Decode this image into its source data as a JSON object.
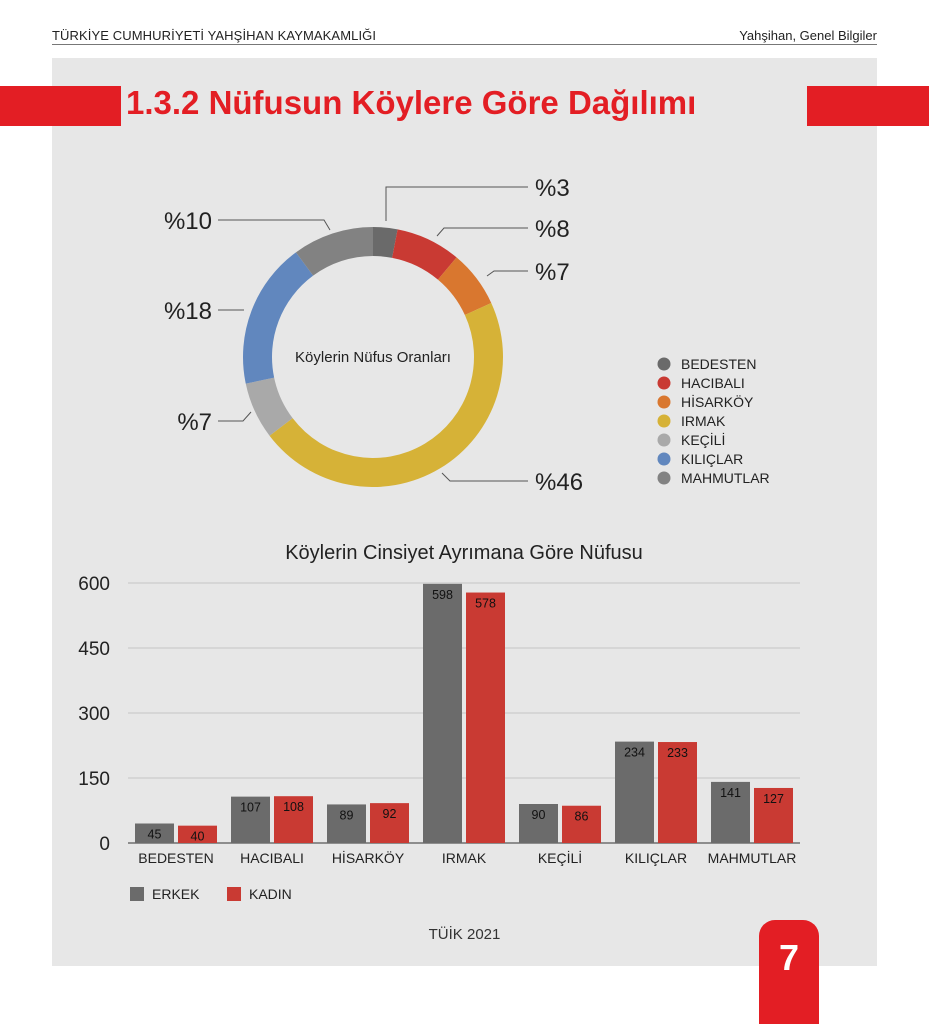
{
  "header": {
    "left": "TÜRKİYE CUMHURİYETİ YAHŞİHAN KAYMAKAMLIĞI",
    "right": "Yahşihan, Genel Bilgiler"
  },
  "section_title": "1.3.2 Nüfusun Köylere Göre Dağılımı",
  "source": "TÜİK 2021",
  "page_number": "7",
  "colors": {
    "accent": "#e31e24",
    "panel": "#e7e7e7",
    "erkek": "#6b6b6b",
    "kadin": "#c93a33"
  },
  "chart_data": [
    {
      "type": "pie",
      "title": "Köylerin Nüfus Oranları",
      "legend_position": "right",
      "slices": [
        {
          "name": "BEDESTEN",
          "value": 3,
          "label": "%3",
          "color": "#6a6a6a"
        },
        {
          "name": "HACIBALI",
          "value": 8,
          "label": "%8",
          "color": "#c93a33"
        },
        {
          "name": "HİSARKÖY",
          "value": 7,
          "label": "%7",
          "color": "#d9772f"
        },
        {
          "name": "IRMAK",
          "value": 46,
          "label": "%46",
          "color": "#d6b237"
        },
        {
          "name": "KEÇİLİ",
          "value": 7,
          "label": "%7",
          "color": "#a9a9a9"
        },
        {
          "name": "KILIÇLAR",
          "value": 18,
          "label": "%18",
          "color": "#6187be"
        },
        {
          "name": "MAHMUTLAR",
          "value": 10,
          "label": "%10",
          "color": "#828282"
        }
      ]
    },
    {
      "type": "bar",
      "title": "Köylerin Cinsiyet Ayrımana Göre Nüfusu",
      "categories": [
        "BEDESTEN",
        "HACIBALI",
        "HİSARKÖY",
        "IRMAK",
        "KEÇİLİ",
        "KILIÇLAR",
        "MAHMUTLAR"
      ],
      "series": [
        {
          "name": "ERKEK",
          "values": [
            45,
            107,
            89,
            598,
            90,
            234,
            141
          ],
          "color": "#6b6b6b"
        },
        {
          "name": "KADIN",
          "values": [
            40,
            108,
            92,
            578,
            86,
            233,
            127
          ],
          "color": "#c93a33"
        }
      ],
      "yticks": [
        "0",
        "150",
        "300",
        "450",
        "600"
      ],
      "ylim": [
        0,
        600
      ],
      "grid": true,
      "legend_position": "bottom-left"
    }
  ]
}
